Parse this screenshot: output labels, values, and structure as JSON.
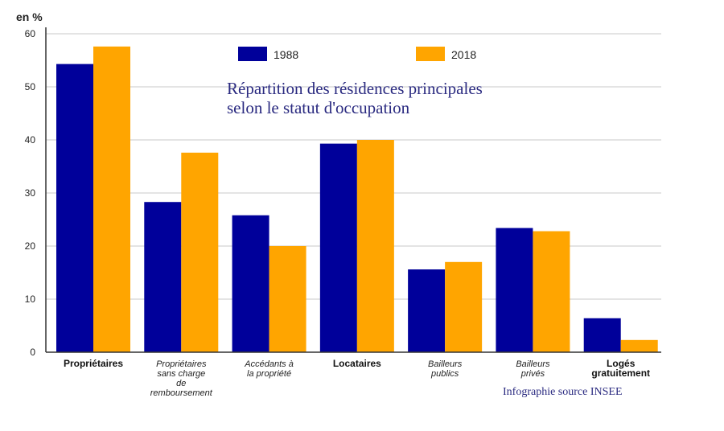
{
  "chart_data": {
    "type": "bar",
    "title_lines": [
      "Répartition des résidences principales",
      "selon le statut d'occupation"
    ],
    "unit_label": "en %",
    "source": "Infographie source INSEE",
    "ylim": [
      0,
      60
    ],
    "yticks": [
      "0",
      "10",
      "20",
      "30",
      "40",
      "50",
      "60"
    ],
    "grid": true,
    "legend_position": "top-center",
    "categories": [
      {
        "lines": [
          "Propriétaires"
        ],
        "style": "bold"
      },
      {
        "lines": [
          "Propriétaires",
          "sans charge",
          "de",
          "remboursement"
        ],
        "style": "italic"
      },
      {
        "lines": [
          "Accédants à",
          "la propriété"
        ],
        "style": "italic"
      },
      {
        "lines": [
          "Locataires"
        ],
        "style": "bold"
      },
      {
        "lines": [
          "Bailleurs",
          "publics"
        ],
        "style": "italic"
      },
      {
        "lines": [
          "Bailleurs",
          "privés"
        ],
        "style": "italic"
      },
      {
        "lines": [
          "Logés",
          "gratuitement"
        ],
        "style": "bold"
      }
    ],
    "series": [
      {
        "name": "1988",
        "color": "#00009a",
        "values": [
          54.3,
          28.3,
          25.8,
          39.3,
          15.6,
          23.4,
          6.4
        ]
      },
      {
        "name": "2018",
        "color": "#ffa500",
        "values": [
          57.6,
          37.6,
          20.0,
          40.0,
          17.0,
          22.8,
          2.3
        ]
      }
    ]
  }
}
